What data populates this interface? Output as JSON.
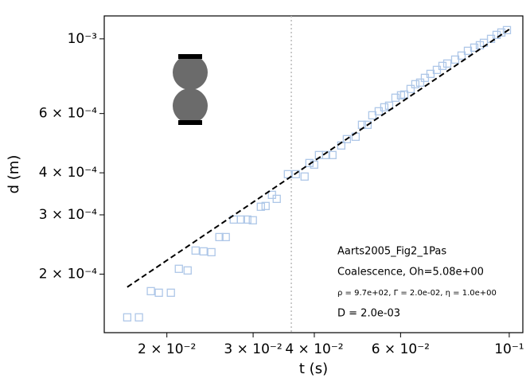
{
  "chart_data": {
    "type": "scatter",
    "xlabel": "t (s)",
    "ylabel": "d (m)",
    "xscale": "log",
    "yscale": "log",
    "xlim": [
      0.0149,
      0.1066
    ],
    "ylim": [
      0.000134,
      0.00117
    ],
    "xticks": [
      {
        "value": 0.02,
        "label": "2 × 10⁻²"
      },
      {
        "value": 0.03,
        "label": "3 × 10⁻²"
      },
      {
        "value": 0.04,
        "label": "4 × 10⁻²"
      },
      {
        "value": 0.06,
        "label": "6 × 10⁻²"
      },
      {
        "value": 0.1,
        "label": "10⁻¹"
      }
    ],
    "yticks": [
      {
        "value": 0.0002,
        "label": "2 × 10⁻⁴"
      },
      {
        "value": 0.0003,
        "label": "3 × 10⁻⁴"
      },
      {
        "value": 0.0004,
        "label": "4 × 10⁻⁴"
      },
      {
        "value": 0.0006,
        "label": "6 × 10⁻⁴"
      },
      {
        "value": 0.001,
        "label": "10⁻³"
      }
    ],
    "color": "#aec7e8",
    "x": [
      0.0166,
      0.01754,
      0.01855,
      0.01926,
      0.02038,
      0.02116,
      0.02205,
      0.02289,
      0.02376,
      0.02466,
      0.0256,
      0.02638,
      0.02739,
      0.02833,
      0.02919,
      0.02996,
      0.03111,
      0.03181,
      0.03278,
      0.03352,
      0.03533,
      0.03667,
      0.03821,
      0.03909,
      0.03997,
      0.04088,
      0.04228,
      0.04356,
      0.0454,
      0.04661,
      0.04857,
      0.05005,
      0.05138,
      0.05254,
      0.05414,
      0.05558,
      0.05685,
      0.05857,
      0.06012,
      0.06104,
      0.06289,
      0.06431,
      0.06578,
      0.06727,
      0.06906,
      0.07116,
      0.07305,
      0.07472,
      0.07756,
      0.07991,
      0.08234,
      0.08484,
      0.0871,
      0.08876,
      0.0918,
      0.09423,
      0.09636,
      0.09892
    ],
    "values": [
      0.0001488,
      0.0001488,
      0.000178,
      0.0001761,
      0.0001761,
      0.0002074,
      0.0002051,
      0.000235,
      0.0002337,
      0.0002324,
      0.0002577,
      0.0002577,
      0.0002905,
      0.0002905,
      0.0002905,
      0.0002891,
      0.0003171,
      0.0003188,
      0.000344,
      0.0003347,
      0.0003963,
      0.0003963,
      0.0003899,
      0.0004277,
      0.000423,
      0.0004517,
      0.0004517,
      0.0004517,
      0.0004822,
      0.0005036,
      0.0005119,
      0.0005555,
      0.0005555,
      0.0005929,
      0.0006094,
      0.0006262,
      0.0006331,
      0.0006686,
      0.0006796,
      0.0006832,
      0.0007098,
      0.0007333,
      0.0007413,
      0.0007659,
      0.000787,
      0.0008087,
      0.0008311,
      0.0008446,
      0.0008678,
      0.000892,
      0.0009215,
      0.0009419,
      0.0009574,
      0.0009732,
      0.001,
      0.0010275,
      0.0010445,
      0.0010617
    ],
    "fit_line": {
      "x": [
        0.0166,
        0.1
      ],
      "values": [
        0.000183,
        0.001067
      ],
      "color": "#000000"
    },
    "vline": 0.0359,
    "annotations": [
      "Aarts2005_Fig2_1Pas",
      "Coalescence, Oh=5.08e+00",
      "ρ = 9.7e+02, Γ = 2.0e-02, η = 1.0e+00",
      "D = 2.0e-03"
    ]
  }
}
